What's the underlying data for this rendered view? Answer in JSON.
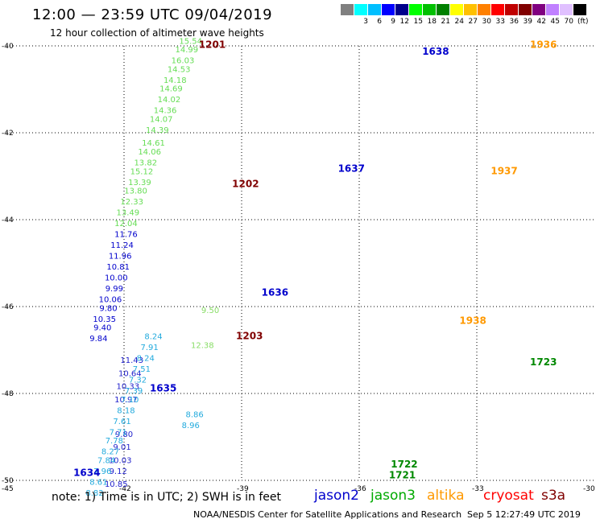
{
  "header": {
    "title": "12:00  —  23:59 UTC 09/04/2019",
    "subtitle": "12 hour collection of altimeter wave heights"
  },
  "legend": {
    "colors": [
      "#808080",
      "#00ffff",
      "#00bfff",
      "#0000ff",
      "#00008b",
      "#00ff00",
      "#00c000",
      "#008000",
      "#ffff00",
      "#ffc000",
      "#ff8000",
      "#ff0000",
      "#c00000",
      "#800000",
      "#800080",
      "#c080ff",
      "#e0c0ff",
      "#000000"
    ],
    "labels": [
      "3",
      "6",
      "9",
      "12",
      "15",
      "18",
      "21",
      "24",
      "27",
      "30",
      "33",
      "36",
      "39",
      "42",
      "45",
      "70"
    ],
    "unit": "(ft)"
  },
  "note": "note: 1) Time is in UTC; 2) SWH is in feet",
  "satellites": [
    {
      "name": "jason2",
      "color": "#0000cc"
    },
    {
      "name": "jason3",
      "color": "#00aa00"
    },
    {
      "name": "altika",
      "color": "#ff9900"
    },
    {
      "name": "cryosat",
      "color": "#ff0000"
    },
    {
      "name": "s3a",
      "color": "#800000"
    }
  ],
  "footer": {
    "credit": "NOAA/NESDIS Center for Satellite Applications and Research",
    "date": "Sep  5 12:27:49 UTC 2019"
  },
  "chart_data": {
    "type": "scatter",
    "xlim": [
      -45,
      -30
    ],
    "ylim": [
      -50,
      -40
    ],
    "x_ticks": [
      "-45",
      "-42",
      "-39",
      "-36",
      "-33",
      "-30"
    ],
    "y_ticks": [
      "-40",
      "-42",
      "-44",
      "-46",
      "-48",
      "-50"
    ],
    "grid": true,
    "time_labels": [
      {
        "text": "1201",
        "lon": -39.75,
        "lat": -40.05,
        "color": "#800000"
      },
      {
        "text": "1202",
        "lon": -38.9,
        "lat": -43.25,
        "color": "#800000"
      },
      {
        "text": "1203",
        "lon": -38.8,
        "lat": -46.75,
        "color": "#800000"
      },
      {
        "text": "1634",
        "lon": -42.95,
        "lat": -49.9,
        "color": "#0000cc"
      },
      {
        "text": "1635",
        "lon": -41.0,
        "lat": -47.95,
        "color": "#0000cc"
      },
      {
        "text": "1636",
        "lon": -38.15,
        "lat": -45.75,
        "color": "#0000cc"
      },
      {
        "text": "1637",
        "lon": -36.2,
        "lat": -42.9,
        "color": "#0000cc"
      },
      {
        "text": "1638",
        "lon": -34.05,
        "lat": -40.2,
        "color": "#0000cc"
      },
      {
        "text": "1721",
        "lon": -34.9,
        "lat": -49.95,
        "color": "#008800"
      },
      {
        "text": "1722",
        "lon": -34.85,
        "lat": -49.7,
        "color": "#008800"
      },
      {
        "text": "1723",
        "lon": -31.3,
        "lat": -47.35,
        "color": "#008800"
      },
      {
        "text": "1936",
        "lon": -31.3,
        "lat": -40.05,
        "color": "#ff9900"
      },
      {
        "text": "1937",
        "lon": -32.3,
        "lat": -42.95,
        "color": "#ff9900"
      },
      {
        "text": "1938",
        "lon": -33.1,
        "lat": -46.4,
        "color": "#ff9900"
      }
    ],
    "series": [
      {
        "name": "s3a pass 1201-1203 (upper)",
        "color": "#66dd55",
        "points": [
          [
            -40.3,
            -39.95,
            "15.54"
          ],
          [
            -40.4,
            -40.15,
            "14.99"
          ],
          [
            -40.5,
            -40.4,
            "16.03"
          ],
          [
            -40.6,
            -40.6,
            "14.53"
          ],
          [
            -40.7,
            -40.85,
            "14.18"
          ],
          [
            -40.8,
            -41.05,
            "14.69"
          ],
          [
            -40.85,
            -41.3,
            "14.02"
          ],
          [
            -40.95,
            -41.55,
            "14.36"
          ],
          [
            -41.05,
            -41.75,
            "14.07"
          ],
          [
            -41.15,
            -42.0,
            "14.39"
          ],
          [
            -41.25,
            -42.3,
            "14.61"
          ],
          [
            -41.35,
            -42.5,
            "14.06"
          ],
          [
            -41.45,
            -42.75,
            "13.82"
          ],
          [
            -41.55,
            -42.95,
            "15.12"
          ],
          [
            -41.6,
            -43.2,
            "13.39"
          ],
          [
            -41.7,
            -43.4,
            "13.80"
          ],
          [
            -41.8,
            -43.65,
            "12.33"
          ],
          [
            -41.9,
            -43.9,
            "13.49"
          ],
          [
            -41.95,
            -44.15,
            "12.04"
          ]
        ]
      },
      {
        "name": "s3a pass 1201-1203 (lower)",
        "color": "#88dd66",
        "points": [
          [
            -39.8,
            -46.15,
            "9.50"
          ],
          [
            -40.0,
            -46.95,
            "12.38"
          ]
        ]
      },
      {
        "name": "jason2 pass 1634-1636",
        "color": "#0000cc",
        "points": [
          [
            -41.95,
            -44.4,
            "11.76"
          ],
          [
            -42.05,
            -44.65,
            "11.24"
          ],
          [
            -42.1,
            -44.9,
            "11.96"
          ],
          [
            -42.15,
            -45.15,
            "10.81"
          ],
          [
            -42.2,
            -45.4,
            "10.00"
          ],
          [
            -42.25,
            -45.65,
            "9.99"
          ],
          [
            -42.35,
            -45.9,
            "10.06"
          ],
          [
            -42.4,
            -46.1,
            "9.80"
          ],
          [
            -42.5,
            -46.35,
            "10.35"
          ],
          [
            -42.55,
            -46.55,
            "9.40"
          ],
          [
            -42.65,
            -46.8,
            "9.84"
          ]
        ]
      },
      {
        "name": "jason2 pass 1634 (lower)",
        "color": "#2222cc",
        "points": [
          [
            -41.8,
            -47.3,
            "11.43"
          ],
          [
            -41.85,
            -47.6,
            "10.64"
          ],
          [
            -41.9,
            -47.9,
            "10.33"
          ],
          [
            -41.95,
            -48.2,
            "10.97"
          ],
          [
            -42.0,
            -49.0,
            "9.80"
          ],
          [
            -42.05,
            -49.3,
            "9.01"
          ],
          [
            -42.1,
            -49.6,
            "10.03"
          ],
          [
            -42.15,
            -49.85,
            "9.12"
          ],
          [
            -42.2,
            -50.15,
            "10.85"
          ]
        ]
      },
      {
        "name": "jason3 pass 1634 (cyan)",
        "color": "#22aadd",
        "points": [
          [
            -41.25,
            -46.75,
            "8.24"
          ],
          [
            -41.35,
            -47.0,
            "7.91"
          ],
          [
            -41.45,
            -47.25,
            "8.24"
          ],
          [
            -41.55,
            -47.5,
            "7.51"
          ],
          [
            -41.65,
            -47.75,
            "7.32"
          ],
          [
            -41.75,
            -48.0,
            "7.39"
          ],
          [
            -41.85,
            -48.2,
            "7.10"
          ],
          [
            -41.95,
            -48.45,
            "8.18"
          ],
          [
            -42.05,
            -48.7,
            "7.61"
          ],
          [
            -42.15,
            -48.95,
            "7.71"
          ],
          [
            -42.25,
            -49.15,
            "7.78"
          ],
          [
            -42.35,
            -49.4,
            "8.27"
          ],
          [
            -42.45,
            -49.6,
            "7.84"
          ],
          [
            -42.55,
            -49.85,
            "7.96"
          ],
          [
            -42.65,
            -50.1,
            "8.61"
          ],
          [
            -42.75,
            -50.35,
            "8.82"
          ]
        ]
      },
      {
        "name": "s3a pass 1636 (cyan lower)",
        "color": "#22aadd",
        "points": [
          [
            -40.2,
            -48.55,
            "8.86"
          ],
          [
            -40.3,
            -48.8,
            "8.96"
          ]
        ]
      }
    ]
  }
}
